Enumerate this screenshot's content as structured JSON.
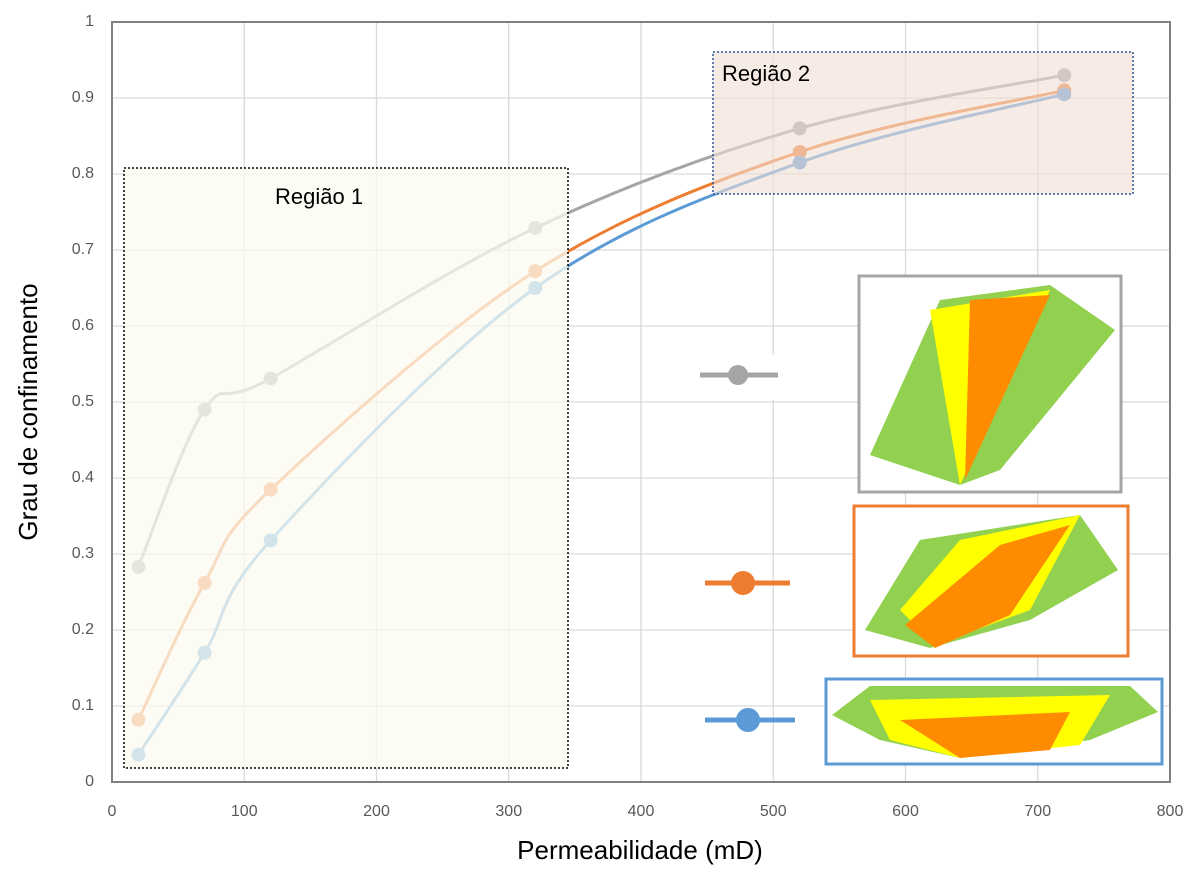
{
  "chart_data": {
    "type": "line",
    "x_label": "Permeabilidade (mD)",
    "y_label": "Grau de confinamento",
    "annotations": [
      "Região 1",
      "Região 2"
    ],
    "xlim": [
      0,
      800
    ],
    "xticks": [
      0,
      100,
      200,
      300,
      400,
      500,
      600,
      700,
      800
    ],
    "ylim": [
      0,
      1
    ],
    "yticks": [
      0,
      0.1,
      0.2,
      0.3,
      0.4,
      0.5,
      0.6,
      0.7,
      0.8,
      0.9,
      1
    ],
    "grid": true,
    "x": [
      20,
      70,
      120,
      320,
      520,
      720
    ],
    "series": [
      {
        "color": "#a5a5a5",
        "values": [
          0.283,
          0.49,
          0.531,
          0.729,
          0.86,
          0.93
        ]
      },
      {
        "color": "#ed7d31",
        "values": [
          0.082,
          0.262,
          0.385,
          0.672,
          0.829,
          0.91
        ]
      },
      {
        "color": "#5b9bd5",
        "values": [
          0.036,
          0.17,
          0.318,
          0.65,
          0.815,
          0.905
        ]
      }
    ]
  }
}
